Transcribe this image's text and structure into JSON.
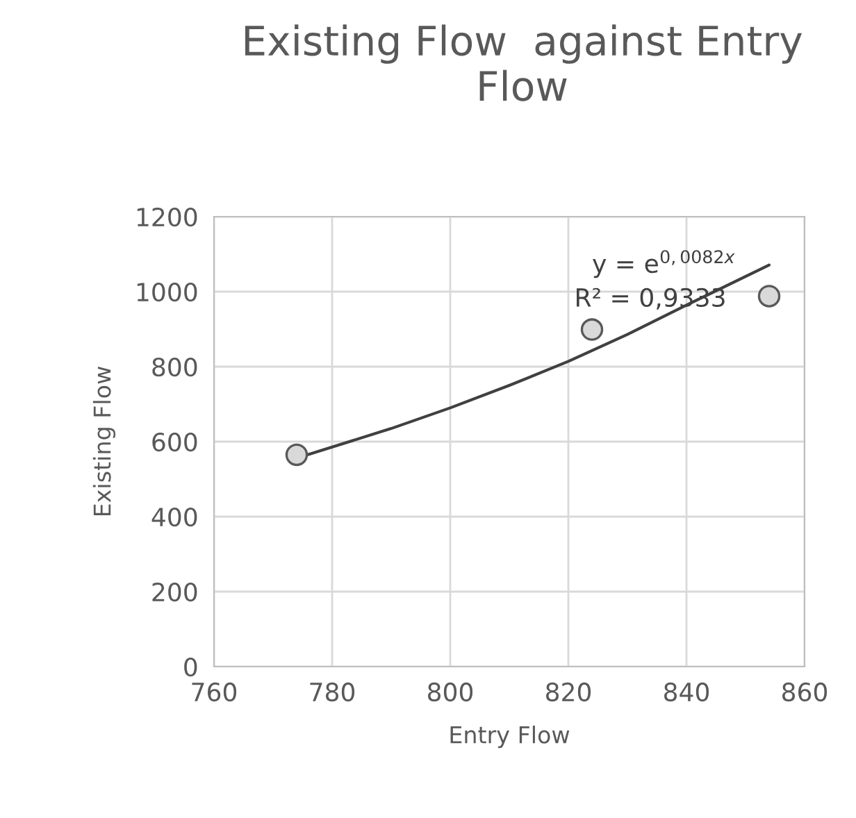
{
  "chart_data": {
    "type": "scatter",
    "title": "Existing Flow  against Entry Flow",
    "xlabel": "Entry Flow",
    "ylabel": "Existing Flow",
    "series": [
      {
        "color": "#d9d9d9",
        "marker": "circle",
        "x": [
          774,
          824,
          854
        ],
        "values": [
          565,
          899,
          988
        ]
      },
      {
        "type": "line",
        "color": "#404040",
        "marker": "none",
        "line_style": "solid",
        "x": [
          774,
          790,
          800,
          810,
          820,
          830,
          840,
          854
        ],
        "values": [
          556,
          635,
          690,
          750,
          814,
          886,
          964,
          1071
        ]
      }
    ],
    "annotations": [
      "y = e$^{0,0082x}$",
      "R² = 0,9333"
    ],
    "xlim": [
      760,
      860
    ],
    "xticks": [
      760,
      780,
      800,
      820,
      840,
      860
    ],
    "ylim": [
      0,
      1200
    ],
    "yticks": [
      0,
      200,
      400,
      600,
      800,
      1000,
      1200
    ],
    "grid": true,
    "legend": false
  }
}
